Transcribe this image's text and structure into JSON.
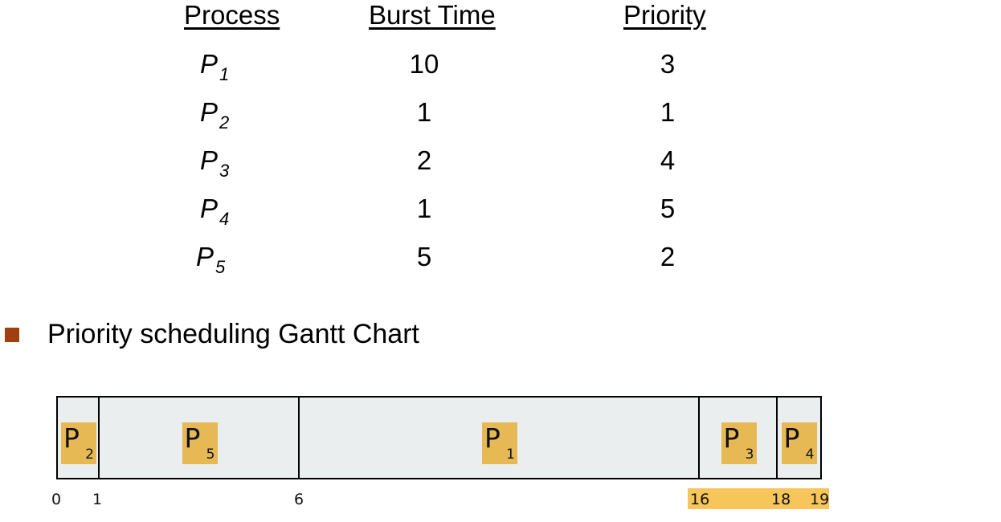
{
  "table": {
    "headers": {
      "process": "Process",
      "burst": "Burst Time",
      "priority": "Priority"
    },
    "rows": [
      {
        "p": "P",
        "sub": "1",
        "burst": "10",
        "priority": "3"
      },
      {
        "p": "P",
        "sub": "2",
        "burst": "1",
        "priority": "1"
      },
      {
        "p": "P",
        "sub": "3",
        "burst": "2",
        "priority": "4"
      },
      {
        "p": "P",
        "sub": "4",
        "burst": "1",
        "priority": "5"
      },
      {
        "p": "P",
        "sub": "5",
        "burst": "5",
        "priority": "2"
      }
    ]
  },
  "bullet": {
    "text": "Priority scheduling Gantt Chart",
    "color": "#a0400f"
  },
  "gantt": {
    "segments": [
      {
        "p": "P",
        "sub": "2",
        "start": 0,
        "end": 1
      },
      {
        "p": "P",
        "sub": "5",
        "start": 1,
        "end": 6
      },
      {
        "p": "P",
        "sub": "1",
        "start": 6,
        "end": 16
      },
      {
        "p": "P",
        "sub": "3",
        "start": 16,
        "end": 18
      },
      {
        "p": "P",
        "sub": "4",
        "start": 18,
        "end": 19
      }
    ],
    "ticks": [
      "0",
      "1",
      "6",
      "16",
      "18",
      "19"
    ],
    "colors": {
      "box_fill": "#ebeeee",
      "label_highlight": "#e6b955",
      "tick_highlight": "#f7c65a"
    }
  }
}
